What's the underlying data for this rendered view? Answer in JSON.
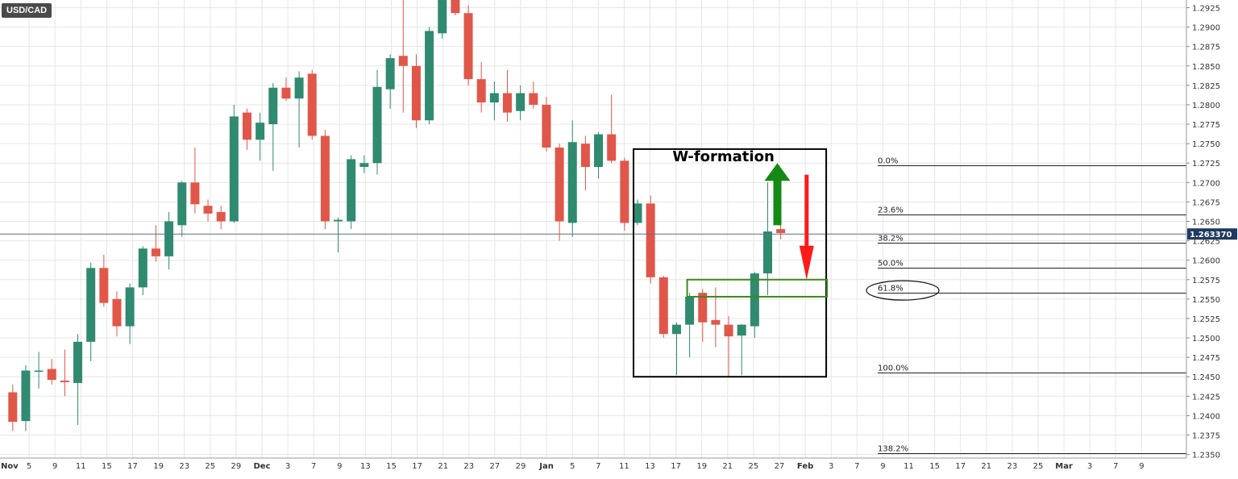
{
  "symbol": "USD/CAD",
  "annotation_title": "W-formation",
  "current_price_label": "1.263370",
  "colors": {
    "up": "#2f8a70",
    "down": "#e0574a",
    "grid": "#e6e6e6",
    "current_line": "#5b6f86",
    "current_badge": "#1e3a5f",
    "up_arrow": "#148a14",
    "down_arrow": "#ff1a1a",
    "zone": "#3c8a1a",
    "box": "#000000"
  },
  "chart_data": {
    "type": "candlestick",
    "title": "",
    "ylim": [
      1.2345,
      1.2935
    ],
    "y_ticks": [
      "1.2925",
      "1.2900",
      "1.2875",
      "1.2850",
      "1.2825",
      "1.2800",
      "1.2775",
      "1.2750",
      "1.2725",
      "1.2700",
      "1.2675",
      "1.2650",
      "1.2625",
      "1.2600",
      "1.2575",
      "1.2550",
      "1.2525",
      "1.2500",
      "1.2475",
      "1.2450",
      "1.2425",
      "1.2400",
      "1.2375",
      "1.2350"
    ],
    "x_ticks": [
      "Nov",
      "5",
      "9",
      "11",
      "15",
      "17",
      "19",
      "23",
      "25",
      "29",
      "Dec",
      "3",
      "7",
      "9",
      "13",
      "15",
      "17",
      "21",
      "23",
      "27",
      "29",
      "Jan",
      "5",
      "7",
      "11",
      "13",
      "17",
      "19",
      "21",
      "25",
      "27",
      "Feb",
      "3",
      "7",
      "9",
      "11",
      "15",
      "17",
      "21",
      "23",
      "25",
      "Mar",
      "3",
      "7",
      "9"
    ],
    "x_tick_months": [
      "Nov",
      "Dec",
      "Jan",
      "Feb",
      "Mar"
    ],
    "series": [
      {
        "candles": [
          {
            "o": 1.243,
            "h": 1.244,
            "l": 1.238,
            "c": 1.2392
          },
          {
            "o": 1.2393,
            "h": 1.2465,
            "l": 1.238,
            "c": 1.2458
          },
          {
            "o": 1.2458,
            "h": 1.2482,
            "l": 1.2435,
            "c": 1.2458
          },
          {
            "o": 1.246,
            "h": 1.2473,
            "l": 1.244,
            "c": 1.2446
          },
          {
            "o": 1.2445,
            "h": 1.2485,
            "l": 1.2425,
            "c": 1.2443
          },
          {
            "o": 1.2442,
            "h": 1.2505,
            "l": 1.2388,
            "c": 1.2495
          },
          {
            "o": 1.2495,
            "h": 1.2597,
            "l": 1.247,
            "c": 1.259
          },
          {
            "o": 1.259,
            "h": 1.2607,
            "l": 1.254,
            "c": 1.2545
          },
          {
            "o": 1.255,
            "h": 1.256,
            "l": 1.2502,
            "c": 1.2515
          },
          {
            "o": 1.2515,
            "h": 1.257,
            "l": 1.2492,
            "c": 1.2565
          },
          {
            "o": 1.2565,
            "h": 1.2618,
            "l": 1.2555,
            "c": 1.2615
          },
          {
            "o": 1.2615,
            "h": 1.2645,
            "l": 1.2598,
            "c": 1.2605
          },
          {
            "o": 1.2605,
            "h": 1.2662,
            "l": 1.2588,
            "c": 1.265
          },
          {
            "o": 1.2645,
            "h": 1.2702,
            "l": 1.263,
            "c": 1.27
          },
          {
            "o": 1.27,
            "h": 1.2745,
            "l": 1.266,
            "c": 1.2672
          },
          {
            "o": 1.267,
            "h": 1.2678,
            "l": 1.265,
            "c": 1.266
          },
          {
            "o": 1.2662,
            "h": 1.267,
            "l": 1.264,
            "c": 1.265
          },
          {
            "o": 1.265,
            "h": 1.28,
            "l": 1.2648,
            "c": 1.2785
          },
          {
            "o": 1.279,
            "h": 1.2795,
            "l": 1.2742,
            "c": 1.2755
          },
          {
            "o": 1.2755,
            "h": 1.279,
            "l": 1.2728,
            "c": 1.2777
          },
          {
            "o": 1.2775,
            "h": 1.2828,
            "l": 1.2715,
            "c": 1.2822
          },
          {
            "o": 1.2822,
            "h": 1.2835,
            "l": 1.2805,
            "c": 1.2808
          },
          {
            "o": 1.2808,
            "h": 1.2843,
            "l": 1.2745,
            "c": 1.2835
          },
          {
            "o": 1.284,
            "h": 1.2845,
            "l": 1.2755,
            "c": 1.276
          },
          {
            "o": 1.276,
            "h": 1.2768,
            "l": 1.264,
            "c": 1.265
          },
          {
            "o": 1.265,
            "h": 1.2655,
            "l": 1.261,
            "c": 1.2652
          },
          {
            "o": 1.265,
            "h": 1.2735,
            "l": 1.264,
            "c": 1.273
          },
          {
            "o": 1.272,
            "h": 1.2735,
            "l": 1.2712,
            "c": 1.2725
          },
          {
            "o": 1.2725,
            "h": 1.2845,
            "l": 1.271,
            "c": 1.2823
          },
          {
            "o": 1.282,
            "h": 1.2865,
            "l": 1.2795,
            "c": 1.286
          },
          {
            "o": 1.2863,
            "h": 1.2935,
            "l": 1.279,
            "c": 1.285
          },
          {
            "o": 1.285,
            "h": 1.2865,
            "l": 1.277,
            "c": 1.278
          },
          {
            "o": 1.278,
            "h": 1.29,
            "l": 1.2775,
            "c": 1.2895
          },
          {
            "o": 1.2892,
            "h": 1.2935,
            "l": 1.2885,
            "c": 1.2935
          },
          {
            "o": 1.2935,
            "h": 1.2935,
            "l": 1.2915,
            "c": 1.2918
          },
          {
            "o": 1.2918,
            "h": 1.2928,
            "l": 1.2825,
            "c": 1.2833
          },
          {
            "o": 1.2833,
            "h": 1.2855,
            "l": 1.279,
            "c": 1.2803
          },
          {
            "o": 1.2803,
            "h": 1.283,
            "l": 1.278,
            "c": 1.2815
          },
          {
            "o": 1.2815,
            "h": 1.2845,
            "l": 1.2778,
            "c": 1.279
          },
          {
            "o": 1.2792,
            "h": 1.2825,
            "l": 1.278,
            "c": 1.2815
          },
          {
            "o": 1.2815,
            "h": 1.283,
            "l": 1.2795,
            "c": 1.28
          },
          {
            "o": 1.28,
            "h": 1.281,
            "l": 1.274,
            "c": 1.2745
          },
          {
            "o": 1.2745,
            "h": 1.275,
            "l": 1.2625,
            "c": 1.265
          },
          {
            "o": 1.2648,
            "h": 1.278,
            "l": 1.263,
            "c": 1.2752
          },
          {
            "o": 1.275,
            "h": 1.276,
            "l": 1.269,
            "c": 1.272
          },
          {
            "o": 1.272,
            "h": 1.2765,
            "l": 1.2705,
            "c": 1.2762
          },
          {
            "o": 1.2762,
            "h": 1.2813,
            "l": 1.2725,
            "c": 1.2728
          },
          {
            "o": 1.2728,
            "h": 1.2732,
            "l": 1.2638,
            "c": 1.2648
          },
          {
            "o": 1.2648,
            "h": 1.2678,
            "l": 1.2645,
            "c": 1.2673
          },
          {
            "o": 1.2673,
            "h": 1.2683,
            "l": 1.257,
            "c": 1.2578
          },
          {
            "o": 1.2578,
            "h": 1.258,
            "l": 1.25,
            "c": 1.2505
          },
          {
            "o": 1.2505,
            "h": 1.252,
            "l": 1.2452,
            "c": 1.2517
          },
          {
            "o": 1.2517,
            "h": 1.2558,
            "l": 1.2475,
            "c": 1.2553
          },
          {
            "o": 1.2558,
            "h": 1.2563,
            "l": 1.2495,
            "c": 1.252
          },
          {
            "o": 1.2523,
            "h": 1.2565,
            "l": 1.2488,
            "c": 1.2517
          },
          {
            "o": 1.2517,
            "h": 1.2528,
            "l": 1.245,
            "c": 1.2502
          },
          {
            "o": 1.2503,
            "h": 1.2518,
            "l": 1.2452,
            "c": 1.2517
          },
          {
            "o": 1.2515,
            "h": 1.2585,
            "l": 1.25,
            "c": 1.2583
          },
          {
            "o": 1.2583,
            "h": 1.27,
            "l": 1.2555,
            "c": 1.2637
          },
          {
            "o": 1.264,
            "h": 1.2646,
            "l": 1.2627,
            "c": 1.2635
          }
        ]
      }
    ],
    "current_price": 1.26337,
    "fibonacci": [
      {
        "label": "0.0%",
        "value": 1.2722
      },
      {
        "label": "23.6%",
        "value": 1.2659
      },
      {
        "label": "38.2%",
        "value": 1.2622
      },
      {
        "label": "50.0%",
        "value": 1.259
      },
      {
        "label": "61.8%",
        "value": 1.2558
      },
      {
        "label": "100.0%",
        "value": 1.2455
      },
      {
        "label": "138.2%",
        "value": 1.2352
      }
    ],
    "annotations": {
      "w_formation_box": {
        "start_index": 48,
        "end_index": 62,
        "low": 1.245,
        "high": 1.2743
      },
      "support_zone": {
        "start_index": 52,
        "end_index": 62,
        "low": 1.2553,
        "high": 1.2575
      },
      "up_arrow": {
        "index": 58,
        "from": 1.2645,
        "to": 1.2725
      },
      "down_arrow": {
        "index": 60,
        "from": 1.271,
        "to": 1.2575
      },
      "fib_highlight": "61.8%"
    },
    "grid": true,
    "price_axis": "right"
  }
}
